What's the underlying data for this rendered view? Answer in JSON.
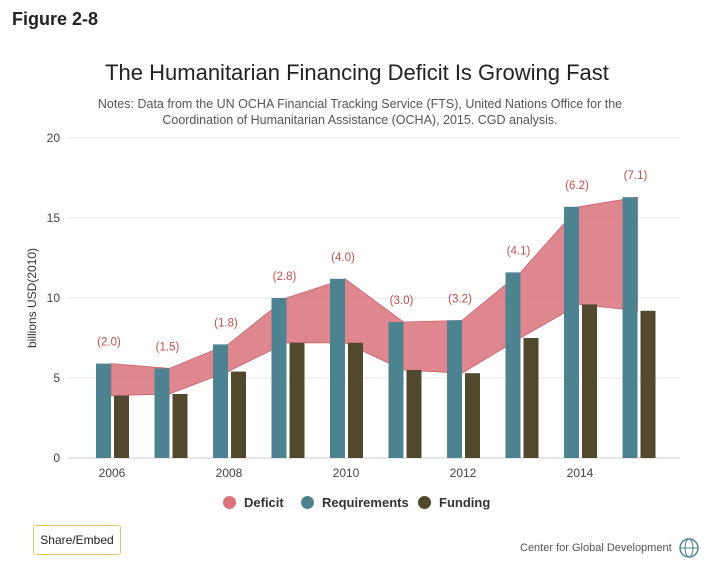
{
  "figure_label": "Figure 2-8",
  "title": "The Humanitarian Financing Deficit Is Growing Fast",
  "notes": "Notes: Data from the UN OCHA Financial Tracking Service (FTS), United Nations Office for the Coordination of Humanitarian Assistance (OCHA), 2015. CGD analysis.",
  "share_button": "Share/Embed",
  "credit": "Center for Global Development",
  "colors": {
    "deficit": "#d9727a",
    "requirements": "#4d8391",
    "funding": "#51482e",
    "deficit_label": "#c0504d"
  },
  "chart_data": {
    "type": "bar",
    "ylabel": "billions USD(2010)",
    "ylim": [
      0,
      20
    ],
    "yticks": [
      "0",
      "5",
      "10",
      "15",
      "20"
    ],
    "x_tick_labels": [
      "2006",
      "2008",
      "2010",
      "2012",
      "2014"
    ],
    "grid": true,
    "legend_placement": "bottom-center",
    "x": [
      2006,
      2007,
      2008,
      2009,
      2010,
      2011,
      2012,
      2013,
      2014,
      2015
    ],
    "series": [
      {
        "name": "Requirements",
        "type": "bar",
        "values": [
          5.9,
          5.6,
          7.1,
          10.0,
          11.2,
          8.5,
          8.6,
          11.6,
          15.7,
          16.3
        ]
      },
      {
        "name": "Funding",
        "type": "bar",
        "values": [
          3.9,
          4.0,
          5.4,
          7.2,
          7.2,
          5.5,
          5.3,
          7.5,
          9.6,
          9.2
        ]
      },
      {
        "name": "Deficit",
        "type": "area",
        "values": [
          2.0,
          1.5,
          1.8,
          2.8,
          4.0,
          3.0,
          3.2,
          4.1,
          6.2,
          7.1
        ]
      }
    ],
    "deficit_labels": [
      "(2.0)",
      "(1.5)",
      "(1.8)",
      "(2.8)",
      "(4.0)",
      "(3.0)",
      "(3.2)",
      "(4.1)",
      "(6.2)",
      "(7.1)"
    ]
  }
}
